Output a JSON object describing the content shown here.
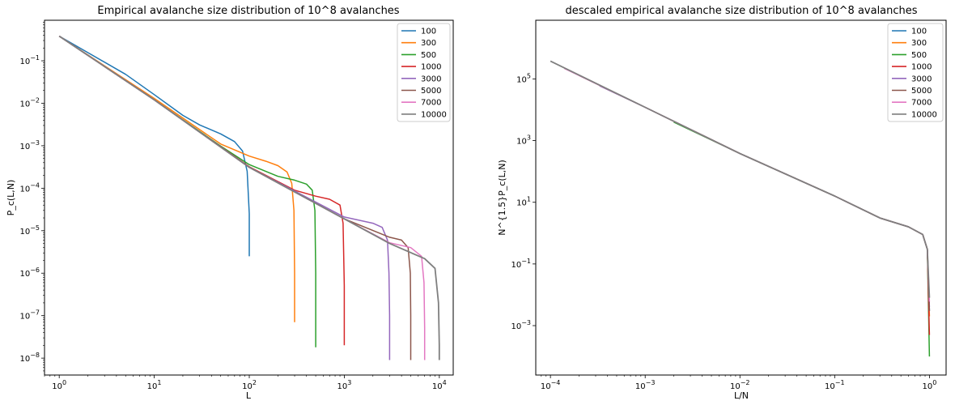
{
  "colors": [
    "#1f77b4",
    "#ff7f0e",
    "#2ca02c",
    "#d62728",
    "#9467bd",
    "#8c564b",
    "#e377c2",
    "#7f7f7f"
  ],
  "chart_data": [
    {
      "type": "line",
      "title": "Empirical avalanche size distribution of 10^8 avalanches",
      "xlabel": "L",
      "ylabel": "P_c(L,N)",
      "xscale": "log",
      "yscale": "log",
      "xlim": [
        0.7,
        14000
      ],
      "ylim": [
        4e-09,
        0.9
      ],
      "xticks": [
        1,
        10,
        100,
        1000,
        10000
      ],
      "xtick_labels": [
        "10^0",
        "10^1",
        "10^2",
        "10^3",
        "10^4"
      ],
      "yticks": [
        1e-08,
        1e-07,
        1e-06,
        1e-05,
        0.0001,
        0.001,
        0.01,
        0.1
      ],
      "ytick_labels": [
        "10^-8",
        "10^-7",
        "10^-6",
        "10^-5",
        "10^-4",
        "10^-3",
        "10^-2",
        "10^-1"
      ],
      "grid": false,
      "legend": "top-right",
      "series": [
        {
          "name": "100",
          "x": [
            1,
            5,
            10,
            20,
            30,
            50,
            70,
            85,
            95,
            100,
            100
          ],
          "y": [
            0.38,
            0.048,
            0.016,
            0.0052,
            0.0031,
            0.0019,
            0.00125,
            0.00075,
            0.00025,
            2.5e-05,
            2.5e-06
          ]
        },
        {
          "name": "300",
          "x": [
            1,
            10,
            50,
            100,
            150,
            200,
            250,
            280,
            295,
            300,
            300
          ],
          "y": [
            0.38,
            0.013,
            0.0011,
            0.00057,
            0.00043,
            0.00034,
            0.00024,
            0.00013,
            3e-05,
            1e-06,
            7e-08
          ]
        },
        {
          "name": "500",
          "x": [
            1,
            10,
            50,
            100,
            200,
            300,
            400,
            460,
            490,
            500,
            500
          ],
          "y": [
            0.38,
            0.012,
            0.00098,
            0.00036,
            0.00019,
            0.000155,
            0.000125,
            9e-05,
            3e-05,
            1e-06,
            1.8e-08
          ]
        },
        {
          "name": "1000",
          "x": [
            1,
            10,
            100,
            300,
            500,
            700,
            900,
            970,
            1000,
            1000
          ],
          "y": [
            0.38,
            0.012,
            0.00032,
            9e-05,
            6.5e-05,
            5.5e-05,
            4e-05,
            1.5e-05,
            5e-07,
            2e-08
          ]
        },
        {
          "name": "3000",
          "x": [
            1,
            10,
            100,
            1000,
            2000,
            2500,
            2850,
            2950,
            3000,
            3000
          ],
          "y": [
            0.38,
            0.012,
            0.00031,
            2.1e-05,
            1.5e-05,
            1.2e-05,
            6e-06,
            1e-06,
            1e-07,
            9e-09
          ]
        },
        {
          "name": "5000",
          "x": [
            1,
            10,
            100,
            1000,
            3000,
            4000,
            4700,
            4950,
            5000,
            5000
          ],
          "y": [
            0.38,
            0.012,
            0.00031,
            1.9e-05,
            7e-06,
            6e-06,
            4e-06,
            1e-06,
            1e-07,
            9e-09
          ]
        },
        {
          "name": "7000",
          "x": [
            1,
            10,
            100,
            1000,
            3000,
            5000,
            6500,
            6900,
            7000,
            7000
          ],
          "y": [
            0.38,
            0.012,
            0.00031,
            1.9e-05,
            5.2e-06,
            4e-06,
            2.5e-06,
            6e-07,
            5e-08,
            9e-09
          ]
        },
        {
          "name": "10000",
          "x": [
            1,
            10,
            100,
            1000,
            3000,
            7000,
            9000,
            9800,
            10000,
            10000
          ],
          "y": [
            0.38,
            0.012,
            0.00031,
            1.9e-05,
            5e-06,
            2.2e-06,
            1.3e-06,
            2e-07,
            2e-08,
            9e-09
          ]
        }
      ]
    },
    {
      "type": "line",
      "title": "descaled empirical avalanche size distribution of 10^8 avalanches",
      "xlabel": "L/N",
      "ylabel": "N^{1.5}P_c(L,N)",
      "xscale": "log",
      "yscale": "log",
      "xlim": [
        7e-05,
        1.5
      ],
      "ylim": [
        2.5e-05,
        8000000.0
      ],
      "xticks": [
        0.0001,
        0.001,
        0.01,
        0.1,
        1
      ],
      "xtick_labels": [
        "10^-4",
        "10^-3",
        "10^-2",
        "10^-1",
        "10^0"
      ],
      "yticks": [
        0.001,
        0.1,
        10,
        1000,
        100000
      ],
      "ytick_labels": [
        "10^-3",
        "10^-1",
        "10^1",
        "10^3",
        "10^5"
      ],
      "grid": false,
      "legend": "top-right",
      "series": [
        {
          "name": "100",
          "x": [
            0.01,
            0.1,
            0.3,
            0.6,
            0.85,
            0.95,
            1.0
          ],
          "y": [
            380,
            16,
            3.1,
            1.6,
            0.9,
            0.3,
            0.003
          ]
        },
        {
          "name": "300",
          "x": [
            0.0033,
            0.01,
            0.1,
            0.3,
            0.6,
            0.85,
            0.95,
            1.0
          ],
          "y": [
            2000,
            380,
            16,
            3.1,
            1.6,
            0.9,
            0.3,
            0.002
          ]
        },
        {
          "name": "500",
          "x": [
            0.002,
            0.01,
            0.1,
            0.3,
            0.6,
            0.85,
            0.95,
            1.0
          ],
          "y": [
            4000,
            380,
            16,
            3.1,
            1.6,
            0.9,
            0.3,
            0.0001
          ]
        },
        {
          "name": "1000",
          "x": [
            0.001,
            0.01,
            0.1,
            0.3,
            0.6,
            0.85,
            0.95,
            1.0
          ],
          "y": [
            12000,
            380,
            16,
            3.1,
            1.6,
            0.9,
            0.3,
            0.0005
          ]
        },
        {
          "name": "3000",
          "x": [
            0.00033,
            0.001,
            0.01,
            0.1,
            0.3,
            0.6,
            0.85,
            0.95,
            1.0
          ],
          "y": [
            60000,
            12000,
            380,
            16,
            3.1,
            1.6,
            0.9,
            0.3,
            0.004
          ]
        },
        {
          "name": "5000",
          "x": [
            0.0002,
            0.001,
            0.01,
            0.1,
            0.3,
            0.6,
            0.85,
            0.95,
            1.0
          ],
          "y": [
            130000,
            12000,
            380,
            16,
            3.1,
            1.6,
            0.9,
            0.3,
            0.003
          ]
        },
        {
          "name": "7000",
          "x": [
            0.00014,
            0.001,
            0.01,
            0.1,
            0.3,
            0.6,
            0.85,
            0.95,
            1.0
          ],
          "y": [
            220000,
            12000,
            380,
            16,
            3.1,
            1.6,
            0.9,
            0.3,
            0.006
          ]
        },
        {
          "name": "10000",
          "x": [
            0.0001,
            0.001,
            0.01,
            0.1,
            0.3,
            0.6,
            0.85,
            0.95,
            1.0
          ],
          "y": [
            380000,
            12000,
            380,
            16,
            3.1,
            1.6,
            0.9,
            0.3,
            0.008
          ]
        }
      ]
    }
  ]
}
